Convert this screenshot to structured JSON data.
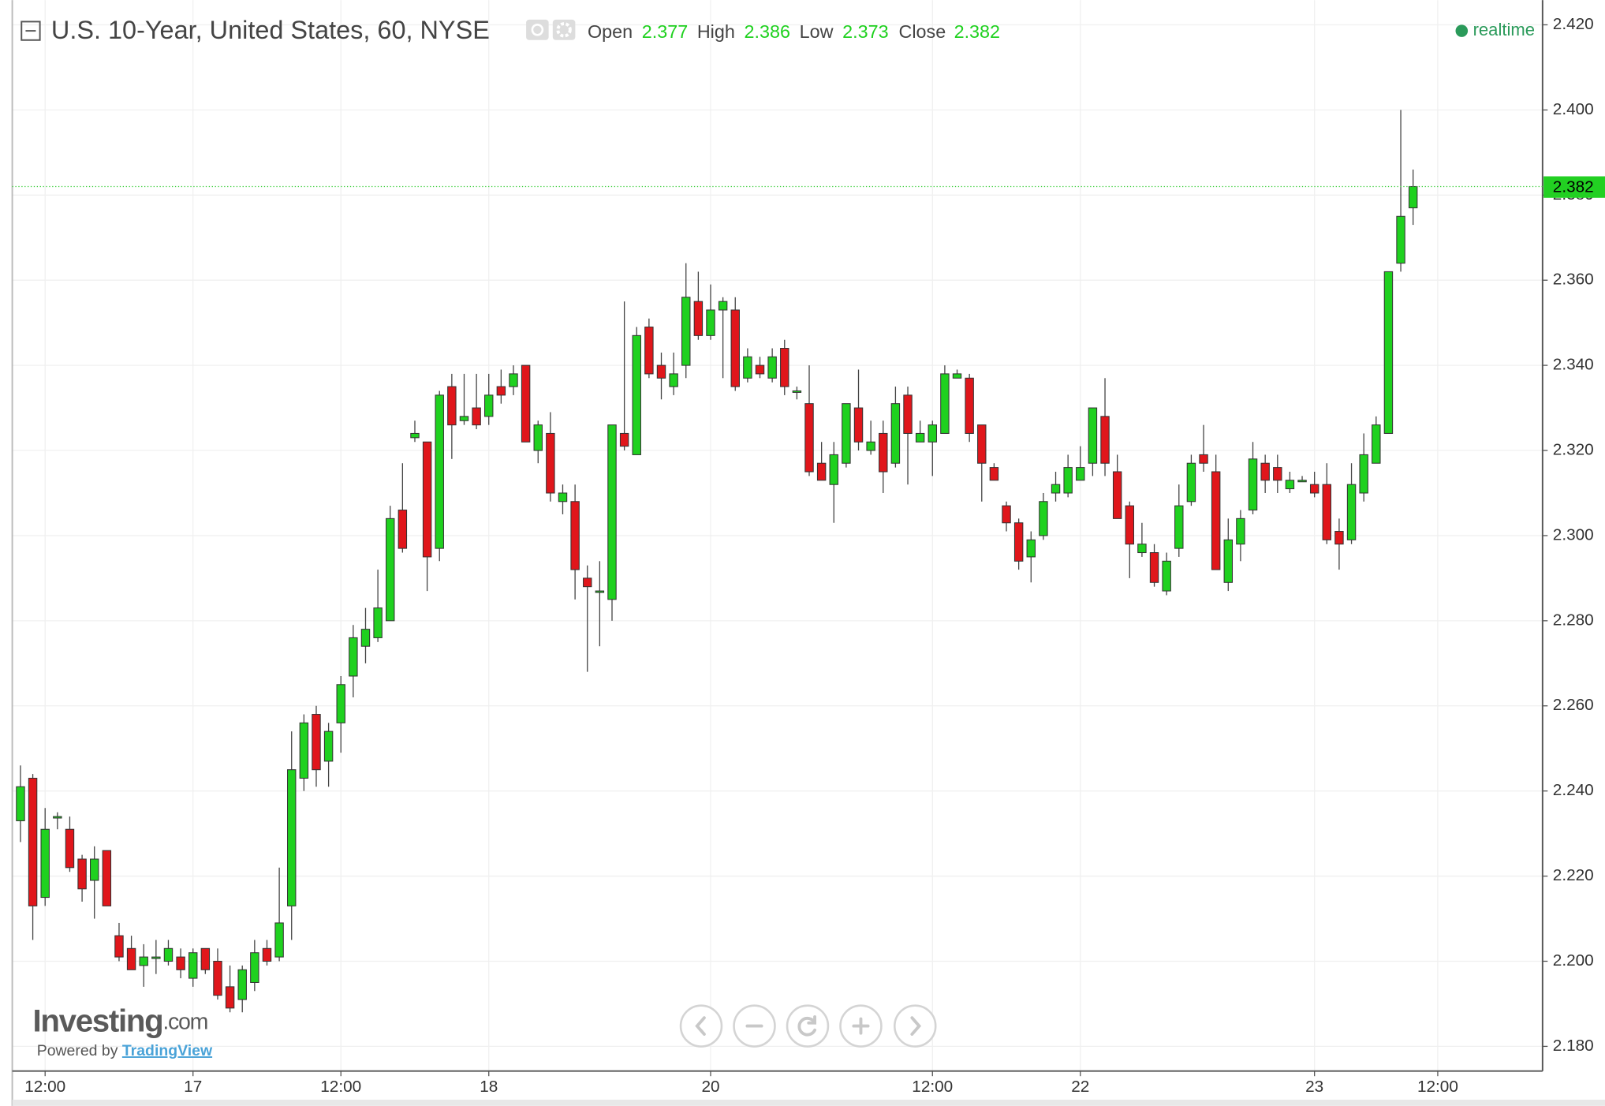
{
  "chart_data": {
    "type": "candlestick",
    "title": "U.S. 10-Year, United States, 60, NYSE",
    "ohlc_labels": [
      "Open",
      "High",
      "Low",
      "Close"
    ],
    "ohlc_values": [
      2.377,
      2.386,
      2.373,
      2.382
    ],
    "status": "realtime",
    "last_price": 2.382,
    "logo": "Investing",
    "logo_suffix": ".com",
    "powered_by": "Powered by",
    "powered_link": "TradingView",
    "up_color": "#1fd11f",
    "down_color": "#e0161b",
    "grid": true,
    "categories": [
      null,
      null,
      "12:00",
      null,
      null,
      null,
      null,
      null,
      null,
      null,
      null,
      null,
      null,
      null,
      "17",
      null,
      null,
      null,
      null,
      null,
      null,
      null,
      null,
      null,
      null,
      null,
      "12:00",
      null,
      null,
      null,
      null,
      null,
      null,
      null,
      null,
      null,
      null,
      null,
      "18",
      null,
      null,
      null,
      null,
      null,
      null,
      null,
      null,
      null,
      null,
      null,
      null,
      null,
      null,
      null,
      null,
      null,
      "20",
      null,
      null,
      null,
      null,
      null,
      null,
      null,
      null,
      null,
      null,
      null,
      null,
      null,
      null,
      null,
      null,
      null,
      "12:00",
      null,
      null,
      null,
      null,
      null,
      null,
      null,
      null,
      null,
      null,
      null,
      "22",
      null,
      null,
      null,
      null,
      null,
      null,
      null,
      null,
      null,
      null,
      null,
      null,
      null,
      null,
      null,
      null,
      null,
      null,
      "23",
      null,
      null,
      null,
      null,
      null,
      null,
      null,
      null,
      null,
      "12:00"
    ],
    "open": [
      2.233,
      2.243,
      2.215,
      2.234,
      2.231,
      2.224,
      2.219,
      2.226,
      2.206,
      2.203,
      2.199,
      2.201,
      2.2,
      2.201,
      2.196,
      2.203,
      2.2,
      2.194,
      2.191,
      2.195,
      2.203,
      2.201,
      2.213,
      2.243,
      2.258,
      2.247,
      2.256,
      2.267,
      2.274,
      2.276,
      2.28,
      2.306,
      2.323,
      2.322,
      2.297,
      2.335,
      2.327,
      2.33,
      2.328,
      2.335,
      2.335,
      2.34,
      2.32,
      2.324,
      2.308,
      2.308,
      2.29,
      2.287,
      2.285,
      2.324,
      2.319,
      2.349,
      2.34,
      2.335,
      2.34,
      2.355,
      2.347,
      2.353,
      2.353,
      2.337,
      2.34,
      2.337,
      2.344,
      2.334,
      2.331,
      2.317,
      2.312,
      2.317,
      2.33,
      2.32,
      2.324,
      2.317,
      2.333,
      2.322,
      2.322,
      2.324,
      2.337,
      2.337,
      2.326,
      2.316,
      2.307,
      2.303,
      2.295,
      2.3,
      2.31,
      2.31,
      2.313,
      2.317,
      2.328,
      2.315,
      2.307,
      2.296,
      2.296,
      2.287,
      2.297,
      2.308,
      2.319,
      2.315,
      2.289,
      2.298,
      2.306,
      2.317,
      2.316,
      2.311,
      2.313,
      2.312,
      2.312,
      2.301,
      2.299,
      2.31,
      2.317,
      2.324,
      2.364,
      2.377,
      null,
      null
    ],
    "high": [
      2.246,
      2.244,
      2.236,
      2.235,
      2.234,
      2.225,
      2.227,
      2.226,
      2.209,
      2.206,
      2.204,
      2.205,
      2.205,
      2.203,
      2.203,
      2.203,
      2.203,
      2.199,
      2.199,
      2.205,
      2.205,
      2.222,
      2.254,
      2.258,
      2.26,
      2.256,
      2.267,
      2.279,
      2.283,
      2.292,
      2.307,
      2.317,
      2.327,
      2.322,
      2.334,
      2.338,
      2.338,
      2.338,
      2.338,
      2.339,
      2.34,
      2.34,
      2.327,
      2.329,
      2.312,
      2.312,
      2.293,
      2.294,
      2.326,
      2.355,
      2.349,
      2.351,
      2.343,
      2.343,
      2.364,
      2.362,
      2.359,
      2.356,
      2.356,
      2.344,
      2.342,
      2.344,
      2.346,
      2.335,
      2.34,
      2.322,
      2.322,
      2.331,
      2.339,
      2.327,
      2.327,
      2.335,
      2.335,
      2.327,
      2.327,
      2.34,
      2.339,
      2.338,
      2.326,
      2.317,
      2.308,
      2.304,
      2.301,
      2.31,
      2.315,
      2.319,
      2.321,
      2.33,
      2.337,
      2.319,
      2.308,
      2.303,
      2.298,
      2.296,
      2.312,
      2.319,
      2.326,
      2.319,
      2.304,
      2.306,
      2.322,
      2.319,
      2.319,
      2.315,
      2.314,
      2.315,
      2.317,
      2.304,
      2.317,
      2.324,
      2.328,
      2.362,
      2.4,
      2.386,
      null,
      null
    ],
    "low": [
      2.228,
      2.205,
      2.213,
      2.231,
      2.221,
      2.214,
      2.21,
      2.213,
      2.2,
      2.198,
      2.194,
      2.197,
      2.199,
      2.196,
      2.194,
      2.197,
      2.191,
      2.188,
      2.188,
      2.193,
      2.199,
      2.2,
      2.205,
      2.24,
      2.241,
      2.241,
      2.249,
      2.262,
      2.27,
      2.275,
      2.28,
      2.296,
      2.322,
      2.287,
      2.294,
      2.318,
      2.326,
      2.325,
      2.326,
      2.331,
      2.333,
      2.322,
      2.317,
      2.308,
      2.305,
      2.285,
      2.268,
      2.274,
      2.28,
      2.32,
      2.319,
      2.337,
      2.332,
      2.333,
      2.337,
      2.346,
      2.346,
      2.337,
      2.334,
      2.336,
      2.337,
      2.336,
      2.333,
      2.332,
      2.314,
      2.313,
      2.303,
      2.316,
      2.32,
      2.319,
      2.31,
      2.316,
      2.312,
      2.322,
      2.314,
      2.324,
      2.337,
      2.322,
      2.308,
      2.313,
      2.301,
      2.292,
      2.289,
      2.299,
      2.308,
      2.309,
      2.313,
      2.314,
      2.314,
      2.304,
      2.29,
      2.295,
      2.288,
      2.286,
      2.295,
      2.307,
      2.315,
      2.292,
      2.287,
      2.294,
      2.305,
      2.31,
      2.31,
      2.31,
      2.313,
      2.309,
      2.298,
      2.292,
      2.298,
      2.308,
      2.317,
      2.324,
      2.362,
      2.373,
      null,
      null
    ],
    "close": [
      2.241,
      2.213,
      2.231,
      2.234,
      2.222,
      2.217,
      2.224,
      2.213,
      2.201,
      2.198,
      2.201,
      2.201,
      2.203,
      2.198,
      2.202,
      2.198,
      2.192,
      2.189,
      2.198,
      2.202,
      2.2,
      2.209,
      2.245,
      2.256,
      2.245,
      2.254,
      2.265,
      2.276,
      2.278,
      2.283,
      2.304,
      2.297,
      2.324,
      2.295,
      2.333,
      2.326,
      2.328,
      2.326,
      2.333,
      2.333,
      2.338,
      2.322,
      2.326,
      2.31,
      2.31,
      2.292,
      2.288,
      2.287,
      2.326,
      2.321,
      2.347,
      2.338,
      2.337,
      2.338,
      2.356,
      2.347,
      2.353,
      2.355,
      2.335,
      2.342,
      2.338,
      2.342,
      2.335,
      2.334,
      2.315,
      2.313,
      2.319,
      2.331,
      2.322,
      2.322,
      2.315,
      2.331,
      2.324,
      2.324,
      2.326,
      2.338,
      2.338,
      2.324,
      2.317,
      2.313,
      2.303,
      2.294,
      2.299,
      2.308,
      2.312,
      2.316,
      2.316,
      2.33,
      2.317,
      2.304,
      2.298,
      2.298,
      2.289,
      2.294,
      2.307,
      2.317,
      2.317,
      2.292,
      2.299,
      2.304,
      2.318,
      2.313,
      2.313,
      2.313,
      2.313,
      2.31,
      2.299,
      2.298,
      2.312,
      2.319,
      2.326,
      2.362,
      2.375,
      2.382,
      null,
      null
    ],
    "ylim": [
      2.1742,
      2.4258
    ],
    "yticks": [
      {
        "value": 2.18,
        "label": "2.180"
      },
      {
        "value": 2.2,
        "label": "2.200"
      },
      {
        "value": 2.22,
        "label": "2.220"
      },
      {
        "value": 2.24,
        "label": "2.240"
      },
      {
        "value": 2.26,
        "label": "2.260"
      },
      {
        "value": 2.28,
        "label": "2.280"
      },
      {
        "value": 2.3,
        "label": "2.300"
      },
      {
        "value": 2.32,
        "label": "2.320"
      },
      {
        "value": 2.34,
        "label": "2.340"
      },
      {
        "value": 2.36,
        "label": "2.360"
      },
      {
        "value": 2.38,
        "label": "2.380"
      },
      {
        "value": 2.4,
        "label": "2.400"
      },
      {
        "value": 2.42,
        "label": "2.420"
      }
    ]
  }
}
